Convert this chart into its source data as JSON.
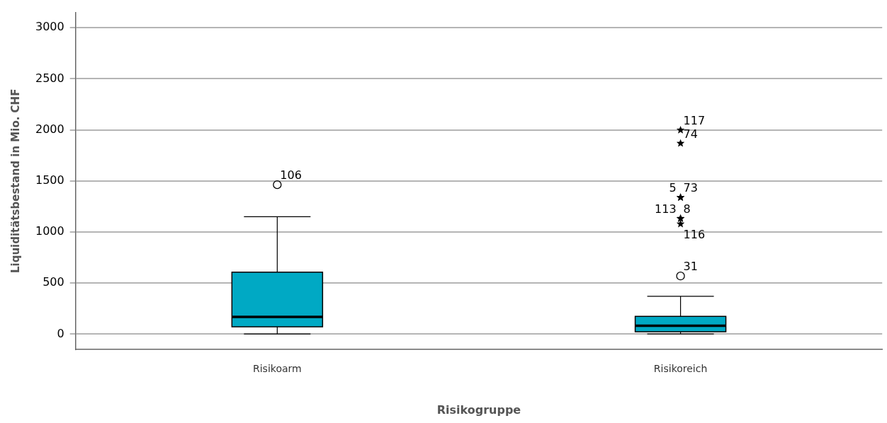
{
  "chart_data": {
    "type": "box",
    "xlabel": "Risikogruppe",
    "ylabel": "Liquiditätsbestand in Mio. CHF",
    "categories": [
      "Risikoarm",
      "Risikoreich"
    ],
    "series": [
      {
        "type": "box",
        "color": "#00a9c4",
        "boxes": [
          {
            "low": 2,
            "q1": 71,
            "median": 169,
            "q3": 606,
            "high": 1149
          },
          {
            "low": 2,
            "q1": 24,
            "median": 82,
            "q3": 173,
            "high": 370
          }
        ]
      },
      {
        "type": "scatter",
        "marker": "circle",
        "color": "#000000",
        "x": [
          "Risikoarm",
          "Risikoreich"
        ],
        "values": [
          1463,
          569
        ]
      },
      {
        "type": "scatter",
        "marker": "star",
        "color": "#000000",
        "x": [
          "Risikoreich",
          "Risikoreich",
          "Risikoreich",
          "Risikoreich",
          "Risikoreich",
          "Risikoreich",
          "Risikoreich"
        ],
        "values": [
          1998,
          1868,
          1338,
          1338,
          1132,
          1132,
          1078
        ]
      }
    ],
    "ylim": [
      -150,
      3150
    ],
    "yticks": [
      0,
      500,
      1000,
      1500,
      2000,
      2500,
      3000
    ],
    "grid": "y",
    "legend": false,
    "annotations": [
      {
        "text": "106",
        "x": "Risikoarm",
        "y": 1463
      },
      {
        "text": "117",
        "x": "Risikoreich",
        "y": 1998
      },
      {
        "text": "74",
        "x": "Risikoreich",
        "y": 1868
      },
      {
        "text": "73",
        "x": "Risikoreich",
        "y": 1338
      },
      {
        "text": "5",
        "x": "Risikoreich",
        "y": 1338
      },
      {
        "text": "8",
        "x": "Risikoreich",
        "y": 1132
      },
      {
        "text": "113",
        "x": "Risikoreich",
        "y": 1132
      },
      {
        "text": "116",
        "x": "Risikoreich",
        "y": 1078
      },
      {
        "text": "31",
        "x": "Risikoreich",
        "y": 569
      }
    ]
  }
}
